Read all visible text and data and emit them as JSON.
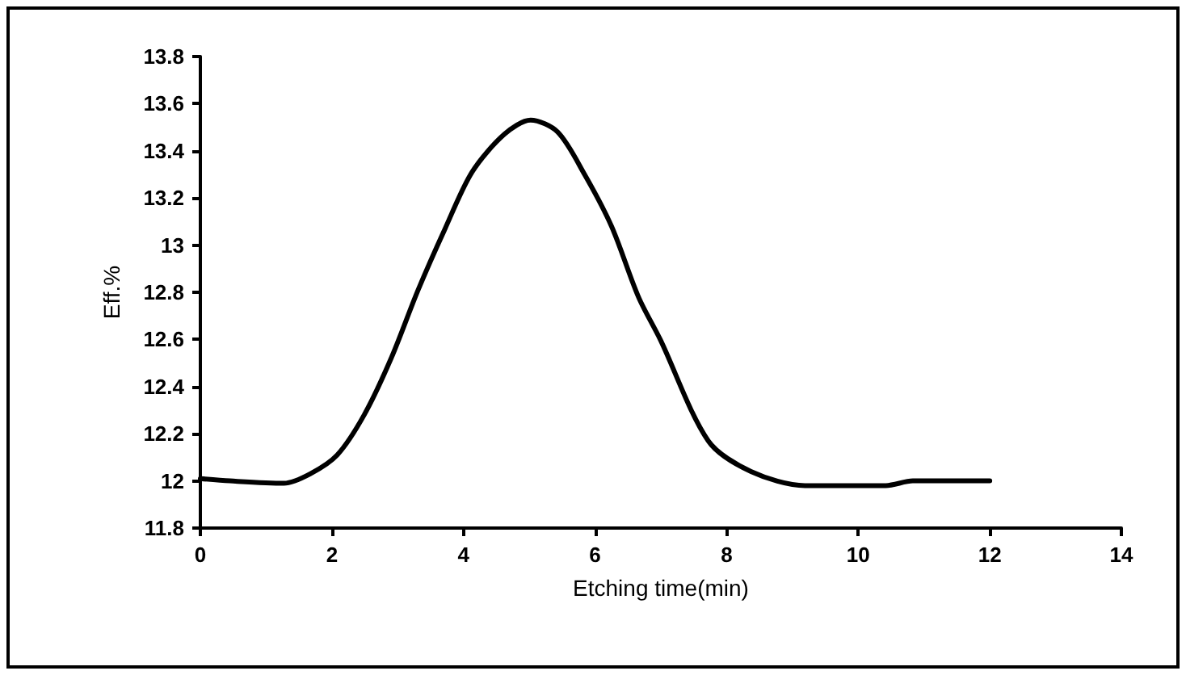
{
  "chart_data": {
    "type": "line",
    "xlabel": "Etching time(min)",
    "ylabel": "Eff.%",
    "x": [
      0,
      0.45,
      1.27,
      1.67,
      2.08,
      2.49,
      2.9,
      3.31,
      3.72,
      4.13,
      4.62,
      5.02,
      5.43,
      5.84,
      6.25,
      6.66,
      6.99,
      7.72,
      8.37,
      9.19,
      10.42,
      10.83,
      12
    ],
    "series": [
      {
        "color": "#000000",
        "values": [
          12.01,
          12.0,
          11.99,
          12.03,
          12.11,
          12.28,
          12.52,
          12.81,
          13.07,
          13.31,
          13.47,
          13.53,
          13.48,
          13.3,
          13.08,
          12.78,
          12.6,
          12.17,
          12.04,
          11.98,
          11.98,
          12.0,
          12.0
        ]
      }
    ],
    "xlim": [
      0,
      14
    ],
    "xticks": [
      0,
      2,
      4,
      6,
      8,
      10,
      12,
      14
    ],
    "ylim": [
      11.8,
      13.8
    ],
    "yticks": [
      11.8,
      12,
      12.2,
      12.4,
      12.6,
      12.8,
      13,
      13.2,
      13.4,
      13.6,
      13.8
    ],
    "grid": false,
    "marker": "none",
    "line_style": "solid"
  }
}
